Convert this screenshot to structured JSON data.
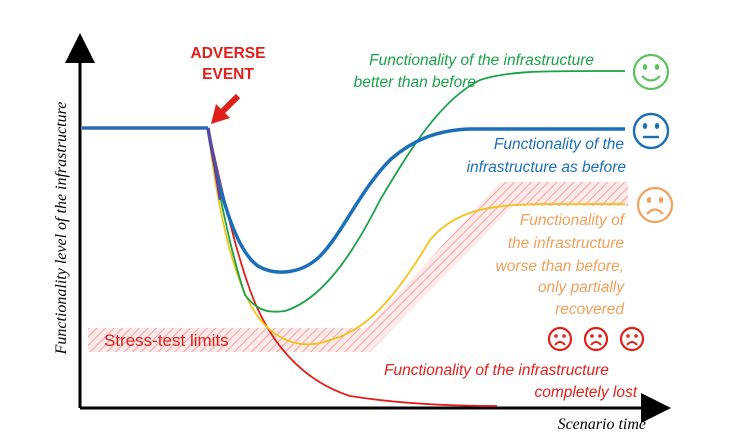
{
  "event": {
    "line1": "ADVERSE",
    "line2": "EVENT"
  },
  "axes": {
    "ylabel": "Functionality level of the infrastructure",
    "xlabel": "Scenario time"
  },
  "stress_test": {
    "label": "Stress-test limits"
  },
  "outcomes": {
    "better": {
      "line1": "Functionality of the infrastructure",
      "line2": "better than before",
      "color": "#1aa14a",
      "icon": "happy-face-icon"
    },
    "same": {
      "line1": "Functionality of the",
      "line2": "infrastructure as before",
      "color": "#1b6fba",
      "icon": "neutral-face-icon"
    },
    "worse": {
      "line1": "Functionality of",
      "line2": "the infrastructure",
      "line3": "worse than before,",
      "line4": "only partially",
      "line5": "recovered",
      "color": "#f2a05a",
      "icon": "sad-face-icon"
    },
    "lost": {
      "line1": "Functionality of the infrastructure",
      "line2": "completely lost",
      "color": "#e0201b",
      "icon": "sad-faces-icon"
    }
  },
  "colors": {
    "baseline": "#2a6cb5",
    "yellow_curve": "#f2c318",
    "hatch": "#f4b6b6",
    "arrow": "#e0201b"
  }
}
